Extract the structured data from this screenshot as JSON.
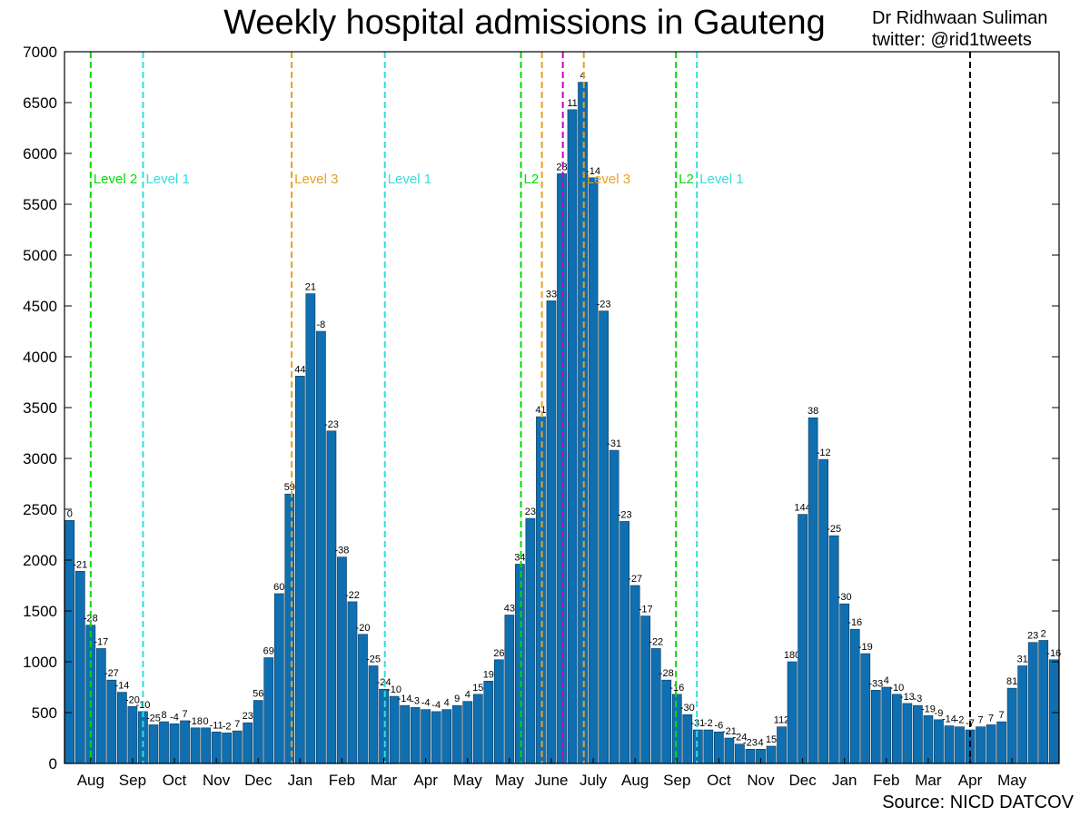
{
  "header": {
    "title": "Weekly hospital admissions in Gauteng",
    "author_line1": "Dr Ridhwaan Suliman",
    "author_line2": "twitter: @rid1tweets"
  },
  "footer": {
    "source": "Source: NICD DATCOV"
  },
  "colors": {
    "bar": "#0f6fb0",
    "level2": "#00dd00",
    "level1": "#33dddd",
    "level3": "#e8a020",
    "magenta": "#cc00cc",
    "black": "#000000"
  },
  "chart_data": {
    "type": "bar",
    "title": "Weekly hospital admissions in Gauteng",
    "xlabel": "",
    "ylabel": "",
    "ylim": [
      0,
      7000
    ],
    "yticks": [
      0,
      500,
      1000,
      1500,
      2000,
      2500,
      3000,
      3500,
      4000,
      4500,
      5000,
      5500,
      6000,
      6500,
      7000
    ],
    "grid": false,
    "values": [
      2390,
      1890,
      1360,
      1130,
      820,
      700,
      560,
      510,
      380,
      410,
      390,
      420,
      350,
      350,
      310,
      300,
      320,
      400,
      620,
      1040,
      1670,
      2650,
      3810,
      4620,
      4250,
      3270,
      2030,
      1590,
      1270,
      960,
      730,
      660,
      570,
      550,
      530,
      510,
      530,
      570,
      610,
      680,
      810,
      1020,
      1460,
      1960,
      2410,
      3410,
      4550,
      5800,
      6430,
      6700,
      5760,
      4450,
      3080,
      2380,
      1750,
      1450,
      1130,
      820,
      680,
      480,
      330,
      330,
      310,
      250,
      190,
      140,
      140,
      170,
      360,
      1000,
      2450,
      3400,
      2990,
      2240,
      1570,
      1320,
      1080,
      720,
      750,
      680,
      590,
      570,
      470,
      430,
      370,
      360,
      330,
      360,
      380,
      410,
      740,
      960,
      1190,
      1210,
      1020
    ],
    "bar_labels": [
      "0",
      "-21",
      "-28",
      "-17",
      "-27",
      "-14",
      "-20",
      "-10",
      "-25",
      "8",
      "-4",
      "7",
      "-18",
      "0",
      "-11",
      "-2",
      "7",
      "23",
      "56",
      "69",
      "60",
      "59",
      "44",
      "21",
      "-8",
      "-23",
      "-38",
      "-22",
      "-20",
      "-25",
      "-24",
      "-10",
      "-14",
      "-3",
      "-4",
      "-4",
      "4",
      "9",
      "4",
      "15",
      "19",
      "26",
      "43",
      "34",
      "23",
      "41",
      "33",
      "28",
      "11",
      "4",
      "-14",
      "-23",
      "-31",
      "-23",
      "-27",
      "-17",
      "-22",
      "-28",
      "-16",
      "-30",
      "-31",
      "-2",
      "-6",
      "-21",
      "-24",
      "-23",
      "4",
      "15",
      "112",
      "180",
      "144",
      "38",
      "-12",
      "-25",
      "-30",
      "-16",
      "-19",
      "-33",
      "4",
      "-10",
      "-13",
      "-3",
      "-19",
      "-9",
      "-14",
      "-2",
      "-7",
      "7",
      "7",
      "7",
      "81",
      "31",
      "23",
      "2",
      "-16"
    ],
    "month_labels": [
      {
        "label": "Aug",
        "pos": 2.5
      },
      {
        "label": "Sep",
        "pos": 6.5
      },
      {
        "label": "Oct",
        "pos": 10.5
      },
      {
        "label": "Nov",
        "pos": 14.5
      },
      {
        "label": "Dec",
        "pos": 18.5
      },
      {
        "label": "Jan",
        "pos": 22.5
      },
      {
        "label": "Feb",
        "pos": 26.5
      },
      {
        "label": "Mar",
        "pos": 30.5
      },
      {
        "label": "Apr",
        "pos": 34.5
      },
      {
        "label": "May",
        "pos": 38.5
      },
      {
        "label": "May",
        "pos": 42.5
      },
      {
        "label": "June",
        "pos": 46.5
      },
      {
        "label": "July",
        "pos": 50.5
      },
      {
        "label": "Aug",
        "pos": 54.5
      },
      {
        "label": "Sep",
        "pos": 58.5
      },
      {
        "label": "Oct",
        "pos": 62.5
      },
      {
        "label": "Nov",
        "pos": 66.5
      },
      {
        "label": "Dec",
        "pos": 70.5
      },
      {
        "label": "Jan",
        "pos": 74.5
      },
      {
        "label": "Feb",
        "pos": 78.5
      },
      {
        "label": "Mar",
        "pos": 82.5
      },
      {
        "label": "Apr",
        "pos": 86.5
      },
      {
        "label": "May",
        "pos": 90.5
      }
    ],
    "vlines": [
      {
        "pos": 2.5,
        "color": "#00dd00",
        "label": "Level 2"
      },
      {
        "pos": 7.5,
        "color": "#33dddd",
        "label": "Level 1"
      },
      {
        "pos": 21.7,
        "color": "#e8a020",
        "label": "Level 3"
      },
      {
        "pos": 30.6,
        "color": "#33dddd",
        "label": "Level 1"
      },
      {
        "pos": 43.6,
        "color": "#00dd00",
        "label": "L2"
      },
      {
        "pos": 45.6,
        "color": "#e8a020",
        "label": ""
      },
      {
        "pos": 47.6,
        "color": "#cc00cc",
        "label": ""
      },
      {
        "pos": 49.6,
        "color": "#e8a020",
        "label": "Level 3"
      },
      {
        "pos": 58.4,
        "color": "#00dd00",
        "label": "L2"
      },
      {
        "pos": 60.4,
        "color": "#33dddd",
        "label": "Level 1"
      },
      {
        "pos": 86.5,
        "color": "#000000",
        "label": ""
      }
    ]
  }
}
